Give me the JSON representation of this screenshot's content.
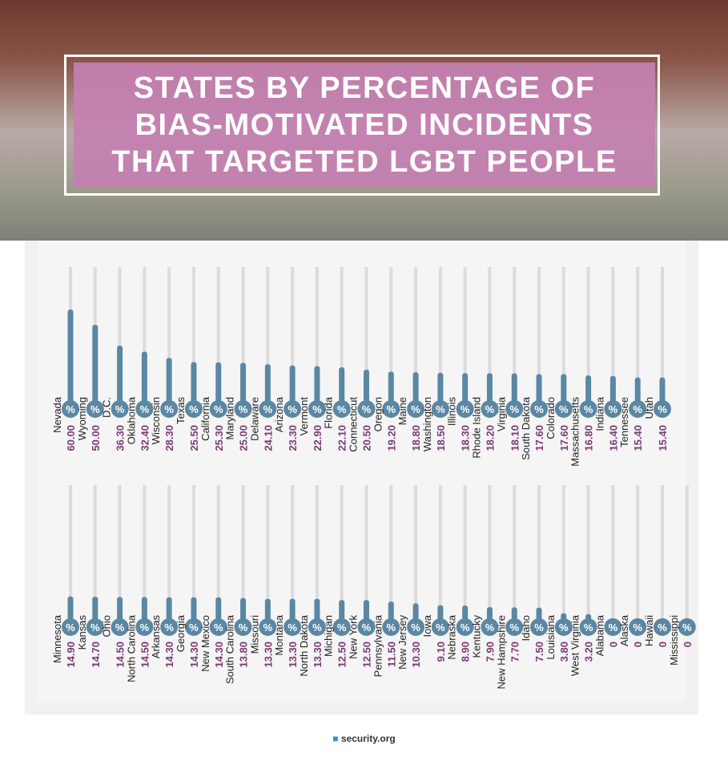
{
  "title": "STATES BY PERCENTAGE OF BIAS-MOTIVATED INCIDENTS THAT TARGETED LGBT PEOPLE",
  "unit_symbol": "%",
  "source_logo": "security.org",
  "chart_data": [
    {
      "type": "bar",
      "categories": [
        "Nevada",
        "Wyoming",
        "D.C.",
        "Oklahoma",
        "Wisconsin",
        "Texas",
        "California",
        "Maryland",
        "Delaware",
        "Arizona",
        "Vermont",
        "Florida",
        "Connecticut",
        "Oregon",
        "Maine",
        "Washington",
        "Illinois",
        "Rhode Island",
        "Virginia",
        "South Dakota",
        "Colorado",
        "Massachusetts",
        "Indiana",
        "Tennessee",
        "Utah"
      ],
      "values": [
        60,
        50,
        36.3,
        32.4,
        28.3,
        25.5,
        25.3,
        25,
        24.1,
        23.3,
        22.9,
        22.1,
        20.5,
        19.2,
        18.8,
        18.5,
        18.3,
        18.2,
        18.1,
        17.6,
        17.6,
        16.8,
        16.4,
        15.4,
        15.4
      ],
      "value_labels": [
        "60.00",
        "50.00",
        "36.30",
        "32.40",
        "28.30",
        "25.50",
        "25.30",
        "25.00",
        "24.10",
        "23.30",
        "22.90",
        "22.10",
        "20.50",
        "19.20",
        "18.80",
        "18.50",
        "18.30",
        "18.20",
        "18.10",
        "17.60",
        "17.60",
        "16.80",
        "16.40",
        "15.40",
        "15.40"
      ],
      "color": "#5a87a4",
      "ylim": [
        0,
        60
      ]
    },
    {
      "type": "bar",
      "categories": [
        "Minnesota",
        "Kansas",
        "Ohio",
        "North Carolina",
        "Arkansas",
        "Georgia",
        "New Mexico",
        "South Carolina",
        "Missouri",
        "Montana",
        "North Dakota",
        "Michigan",
        "New York",
        "Pennsylvania",
        "New Jersey",
        "Iowa",
        "Nebraska",
        "Kentucky",
        "New Hampshire",
        "Idaho",
        "Louisiana",
        "West Virginia",
        "Alabama",
        "Alaska",
        "Hawaii",
        "Mississippi"
      ],
      "values": [
        14.9,
        14.7,
        14.5,
        14.5,
        14.3,
        14.3,
        14.3,
        13.8,
        13.3,
        13.3,
        13.3,
        12.5,
        12.5,
        11.5,
        10.3,
        9.1,
        8.9,
        7.9,
        7.7,
        7.5,
        3.8,
        3.2,
        0,
        0,
        0,
        0
      ],
      "value_labels": [
        "14.90",
        "14.70",
        "14.50",
        "14.50",
        "14.30",
        "14.30",
        "14.30",
        "13.80",
        "13.30",
        "13.30",
        "13.30",
        "12.50",
        "12.50",
        "11.50",
        "10.30",
        "9.10",
        "8.90",
        "7.90",
        "7.70",
        "7.50",
        "3.80",
        "3.20",
        "0",
        "0",
        "0",
        "0"
      ],
      "color": "#5a87a4",
      "ylim": [
        0,
        60
      ]
    }
  ]
}
